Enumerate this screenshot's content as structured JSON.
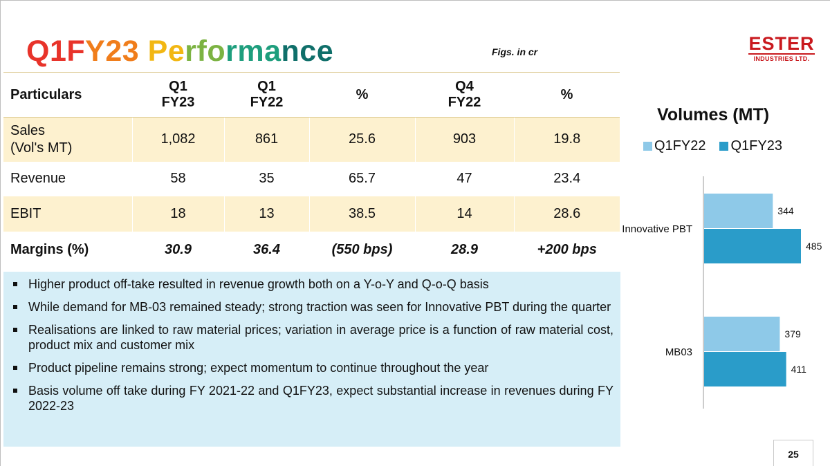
{
  "title": "Q1FY23 Performance",
  "figs_note": "Figs. in cr",
  "logo": {
    "main": "ESTER",
    "sub": "INDUSTRIES LTD."
  },
  "table": {
    "headers": {
      "particulars": "Particulars",
      "q1fy23_l1": "Q1",
      "q1fy23_l2": "FY23",
      "q1fy22_l1": "Q1",
      "q1fy22_l2": "FY22",
      "pct1": "%",
      "q4fy22_l1": "Q4",
      "q4fy22_l2": "FY22",
      "pct2": "%"
    },
    "rows": [
      {
        "label_l1": "Sales",
        "label_l2": "(Vol's MT)",
        "q1fy23": "1,082",
        "q1fy22": "861",
        "pct1": "25.6",
        "q4fy22": "903",
        "pct2": "19.8"
      },
      {
        "label": "Revenue",
        "q1fy23": "58",
        "q1fy22": "35",
        "pct1": "65.7",
        "q4fy22": "47",
        "pct2": "23.4"
      },
      {
        "label": "EBIT",
        "q1fy23": "18",
        "q1fy22": "13",
        "pct1": "38.5",
        "q4fy22": "14",
        "pct2": "28.6"
      },
      {
        "label": "Margins (%)",
        "q1fy23": "30.9",
        "q1fy22": "36.4",
        "pct1": "(550 bps)",
        "q4fy22": "28.9",
        "pct2": "+200 bps"
      }
    ]
  },
  "bullets": [
    "Higher product off-take resulted in revenue growth both on a Y-o-Y and Q-o-Q basis",
    "While demand for MB-03 remained steady; strong traction was seen for Innovative PBT during the quarter",
    "Realisations are linked to raw material prices; variation in average price is a function of raw material cost, product mix and customer mix",
    "Product pipeline remains strong; expect momentum to continue throughout the year",
    "Basis volume off take during FY 2021-22 and Q1FY23, expect substantial increase in revenues during FY 2022-23"
  ],
  "chart_data": {
    "type": "bar",
    "orientation": "horizontal",
    "title": "Volumes (MT)",
    "categories": [
      "Innovative PBT",
      "MB03"
    ],
    "series": [
      {
        "name": "Q1FY22",
        "values": [
          344,
          379
        ],
        "color": "#8ec9e8"
      },
      {
        "name": "Q1FY23",
        "values": [
          485,
          411
        ],
        "color": "#2a9cc9"
      }
    ],
    "legend_position": "top",
    "grid": false
  },
  "page_number": "25",
  "colors": {
    "title_gradient": [
      "#e8332a",
      "#f07d1b",
      "#f2b713",
      "#7cb342",
      "#1e9e7d",
      "#0f6f6a"
    ],
    "table_band": "#fdf1cf",
    "bullet_bg": "#d6eef7",
    "logo_red": "#c9191e"
  }
}
